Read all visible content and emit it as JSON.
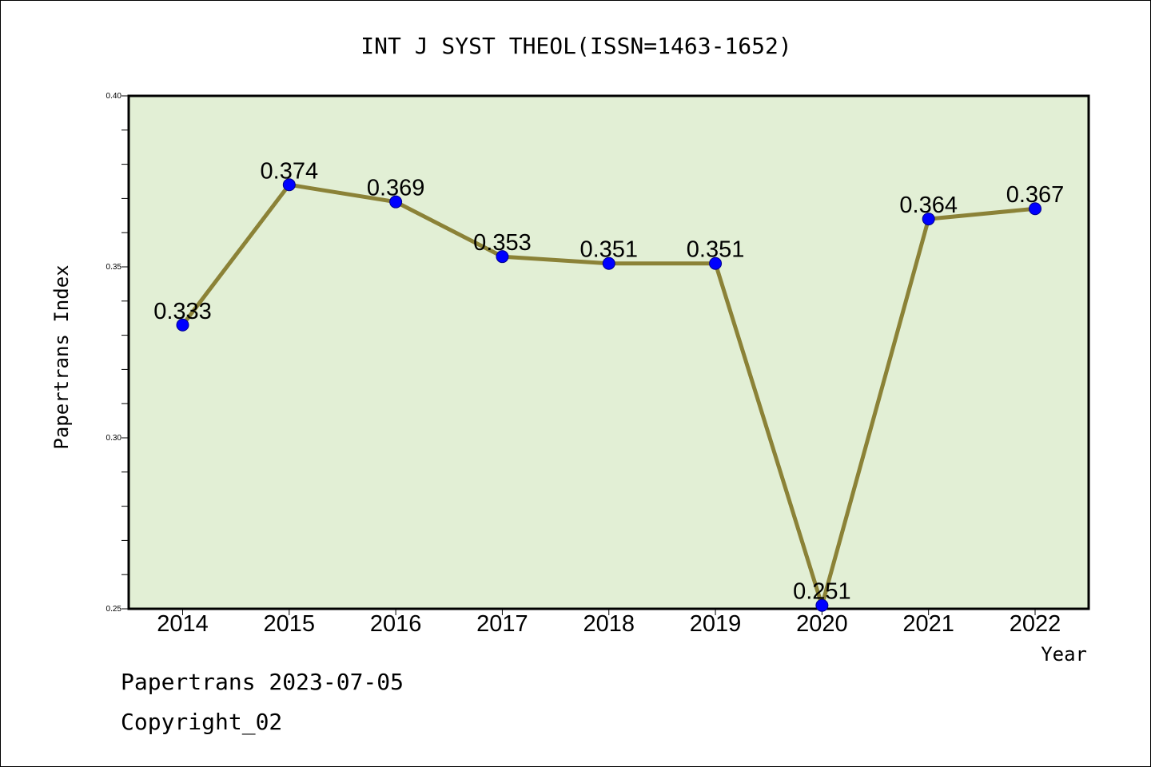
{
  "chart_data": {
    "type": "line",
    "title": "INT J SYST THEOL(ISSN=1463-1652)",
    "xlabel": "Year",
    "ylabel": "Papertrans Index",
    "categories": [
      "2014",
      "2015",
      "2016",
      "2017",
      "2018",
      "2019",
      "2020",
      "2021",
      "2022"
    ],
    "series": [
      {
        "values": [
          0.333,
          0.374,
          0.369,
          0.353,
          0.351,
          0.351,
          0.251,
          0.364,
          0.367
        ],
        "labels": [
          "0.333",
          "0.374",
          "0.369",
          "0.353",
          "0.351",
          "0.351",
          "0.251",
          "0.364",
          "0.367"
        ]
      }
    ],
    "ylim": [
      0.25,
      0.4
    ],
    "yticks": [
      "0.25",
      "0.30",
      "0.35",
      "0.40"
    ],
    "grid": false,
    "colors": {
      "plot_background": "#e2efd5",
      "line": "#8b8237",
      "marker": "#0000ff"
    }
  },
  "footer": {
    "date_line": "Papertrans 2023-07-05",
    "copyright_line": "Copyright_02"
  }
}
